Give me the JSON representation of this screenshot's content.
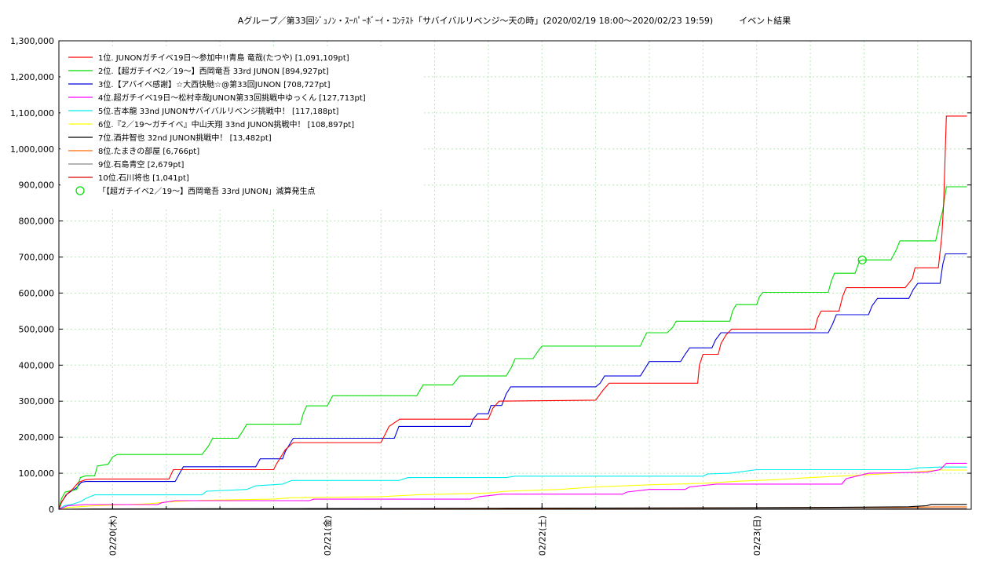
{
  "chart_data": {
    "type": "line",
    "title": "Aグループ／第33回ｼﾞｭﾉﾝ・ｽｰﾊﾟｰﾎﾞｰｲ・ｺﾝﾃｽﾄ「サバイバルリベンジ〜天の時」(2020/02/19 18:00〜2020/02/23 19:59)　　　イベント結果",
    "xlabel": "",
    "ylabel": "",
    "x_range": [
      "2020/02/19 18:00",
      "2020/02/23 19:59"
    ],
    "ylim": [
      0,
      1300000
    ],
    "grid": true,
    "legend_position": "top-left",
    "x_ticks": [
      "02/20(木)",
      "02/21(金)",
      "02/22(土)",
      "02/23(日)"
    ],
    "x_tick_hours": [
      6,
      30,
      54,
      78
    ],
    "y_ticks": [
      {
        "v": 0,
        "label": "0"
      },
      {
        "v": 100000,
        "label": "100,000"
      },
      {
        "v": 200000,
        "label": "200,000"
      },
      {
        "v": 300000,
        "label": "300,000"
      },
      {
        "v": 400000,
        "label": "400,000"
      },
      {
        "v": 500000,
        "label": "500,000"
      },
      {
        "v": 600000,
        "label": "600,000"
      },
      {
        "v": 700000,
        "label": "700,000"
      },
      {
        "v": 800000,
        "label": "800,000"
      },
      {
        "v": 900000,
        "label": "900,000"
      },
      {
        "v": 1000000,
        "label": "1,000,000"
      },
      {
        "v": 1100000,
        "label": "1,100,000"
      },
      {
        "v": 1200000,
        "label": "1,200,000"
      },
      {
        "v": 1300000,
        "label": "1,300,000"
      }
    ],
    "series": [
      {
        "name": "1位. JUNONガチイベ19日〜参加中!!青島 竜哉(たつや) [1,091,109pt]",
        "color": "#ff0000",
        "points": [
          [
            0,
            0
          ],
          [
            0.3,
            20000
          ],
          [
            0.8,
            40000
          ],
          [
            1.5,
            55000
          ],
          [
            2.2,
            75000
          ],
          [
            3,
            82000
          ],
          [
            4,
            84000
          ],
          [
            8,
            84000
          ],
          [
            12.3,
            84000
          ],
          [
            12.8,
            110000
          ],
          [
            24,
            110000
          ],
          [
            24.3,
            125000
          ],
          [
            25.3,
            165000
          ],
          [
            26.2,
            185000
          ],
          [
            36,
            185000
          ],
          [
            36.5,
            210000
          ],
          [
            36.9,
            230000
          ],
          [
            38.1,
            250000
          ],
          [
            48,
            250000
          ],
          [
            48.5,
            280000
          ],
          [
            49.2,
            300000
          ],
          [
            60,
            303000
          ],
          [
            60.8,
            330000
          ],
          [
            61.5,
            350000
          ],
          [
            71.4,
            350000
          ],
          [
            71.6,
            400000
          ],
          [
            72,
            430000
          ],
          [
            73.7,
            430000
          ],
          [
            74,
            460000
          ],
          [
            74.6,
            485000
          ],
          [
            75.2,
            500000
          ],
          [
            84.5,
            500000
          ],
          [
            84.8,
            530000
          ],
          [
            85.2,
            550000
          ],
          [
            87.2,
            550000
          ],
          [
            87.6,
            590000
          ],
          [
            88,
            615000
          ],
          [
            94.6,
            615000
          ],
          [
            95.4,
            640000
          ],
          [
            95.7,
            670000
          ],
          [
            98.3,
            670000
          ],
          [
            98.7,
            760000
          ],
          [
            98.9,
            850000
          ],
          [
            99.2,
            1091109
          ],
          [
            101.5,
            1091109
          ]
        ]
      },
      {
        "name": "2位.【超ガチイベ2／19〜】西岡竜吾 33rd JUNON [894,927pt]",
        "color": "#00dd00",
        "points": [
          [
            0,
            0
          ],
          [
            0.3,
            30000
          ],
          [
            0.7,
            48000
          ],
          [
            1.5,
            52000
          ],
          [
            2,
            55000
          ],
          [
            2.4,
            88000
          ],
          [
            3,
            93000
          ],
          [
            4,
            93000
          ],
          [
            4.3,
            120000
          ],
          [
            5.5,
            125000
          ],
          [
            6,
            145000
          ],
          [
            6.5,
            152000
          ],
          [
            16,
            152000
          ],
          [
            16.7,
            175000
          ],
          [
            17.2,
            197000
          ],
          [
            20,
            197000
          ],
          [
            20.5,
            215000
          ],
          [
            21,
            236000
          ],
          [
            27,
            236000
          ],
          [
            27.3,
            265000
          ],
          [
            27.7,
            287000
          ],
          [
            30,
            287000
          ],
          [
            30.6,
            315000
          ],
          [
            40,
            315000
          ],
          [
            40.7,
            345000
          ],
          [
            44,
            345000
          ],
          [
            44.8,
            370000
          ],
          [
            50,
            370000
          ],
          [
            50.6,
            395000
          ],
          [
            51,
            418000
          ],
          [
            53,
            418000
          ],
          [
            53.6,
            440000
          ],
          [
            54,
            453000
          ],
          [
            65,
            453000
          ],
          [
            65.3,
            470000
          ],
          [
            65.7,
            490000
          ],
          [
            68,
            490000
          ],
          [
            68.6,
            505000
          ],
          [
            69,
            522000
          ],
          [
            75,
            522000
          ],
          [
            75.3,
            550000
          ],
          [
            75.7,
            568000
          ],
          [
            78,
            568000
          ],
          [
            78.3,
            590000
          ],
          [
            78.7,
            602000
          ],
          [
            86,
            602000
          ],
          [
            86.3,
            630000
          ],
          [
            86.7,
            655000
          ],
          [
            89,
            655000
          ],
          [
            89.5,
            690000
          ],
          [
            89.9,
            692000
          ],
          [
            93,
            692000
          ],
          [
            93.6,
            720000
          ],
          [
            94,
            745000
          ],
          [
            98,
            745000
          ],
          [
            98.5,
            800000
          ],
          [
            98.8,
            830000
          ],
          [
            99.2,
            894927
          ],
          [
            101.5,
            894927
          ]
        ]
      },
      {
        "name": "3位.【アバイベ感謝】☆大西快馳☆@第33回JUNON [708,727pt]",
        "color": "#0000dd",
        "points": [
          [
            0,
            0
          ],
          [
            0.3,
            20000
          ],
          [
            0.9,
            42000
          ],
          [
            1.5,
            52000
          ],
          [
            2,
            60000
          ],
          [
            2.5,
            75000
          ],
          [
            3,
            77000
          ],
          [
            13,
            77000
          ],
          [
            13.5,
            100000
          ],
          [
            13.9,
            118000
          ],
          [
            22,
            118000
          ],
          [
            22.5,
            140000
          ],
          [
            25,
            140000
          ],
          [
            25.3,
            160000
          ],
          [
            26.2,
            197000
          ],
          [
            37.5,
            197000
          ],
          [
            38,
            230000
          ],
          [
            46,
            230000
          ],
          [
            46.3,
            250000
          ],
          [
            46.8,
            265000
          ],
          [
            48,
            265000
          ],
          [
            48.3,
            288000
          ],
          [
            49.5,
            288000
          ],
          [
            50,
            320000
          ],
          [
            50.5,
            340000
          ],
          [
            60,
            340000
          ],
          [
            60.5,
            350000
          ],
          [
            61,
            370000
          ],
          [
            65,
            370000
          ],
          [
            65.5,
            390000
          ],
          [
            66,
            410000
          ],
          [
            69.5,
            410000
          ],
          [
            70,
            430000
          ],
          [
            70.5,
            448000
          ],
          [
            73,
            448000
          ],
          [
            73.4,
            470000
          ],
          [
            74,
            490000
          ],
          [
            86,
            490000
          ],
          [
            86.5,
            515000
          ],
          [
            86.9,
            540000
          ],
          [
            90.5,
            540000
          ],
          [
            90.9,
            565000
          ],
          [
            91.5,
            585000
          ],
          [
            95,
            585000
          ],
          [
            95.5,
            610000
          ],
          [
            96,
            627000
          ],
          [
            98.5,
            627000
          ],
          [
            98.8,
            680000
          ],
          [
            99.1,
            708727
          ],
          [
            101.5,
            708727
          ]
        ]
      },
      {
        "name": "4位.超ガチイベ19日〜松村幸哉JUNON第33回挑戦中ゆっくん [127,713pt]",
        "color": "#ff00ff",
        "points": [
          [
            0,
            0
          ],
          [
            0.5,
            5000
          ],
          [
            1,
            10000
          ],
          [
            3,
            13000
          ],
          [
            11,
            13000
          ],
          [
            11.5,
            18000
          ],
          [
            13,
            24000
          ],
          [
            28,
            24000
          ],
          [
            28.5,
            28000
          ],
          [
            46,
            28000
          ],
          [
            47,
            35000
          ],
          [
            49.5,
            42000
          ],
          [
            63,
            42000
          ],
          [
            63.5,
            48000
          ],
          [
            66,
            55000
          ],
          [
            70,
            55000
          ],
          [
            70.5,
            62000
          ],
          [
            73.5,
            70000
          ],
          [
            87.5,
            70000
          ],
          [
            88,
            85000
          ],
          [
            90.5,
            100000
          ],
          [
            97,
            103000
          ],
          [
            98.5,
            110000
          ],
          [
            99.2,
            127713
          ],
          [
            101.5,
            127713
          ]
        ]
      },
      {
        "name": "5位.吉本龍 33nd JUNONサバイバルリベンジ挑戦中！ [117,188pt]",
        "color": "#00eeee",
        "points": [
          [
            0,
            0
          ],
          [
            0.6,
            10000
          ],
          [
            1.5,
            14000
          ],
          [
            2.5,
            22000
          ],
          [
            3,
            30000
          ],
          [
            3.5,
            35000
          ],
          [
            4,
            40000
          ],
          [
            16,
            40000
          ],
          [
            16.5,
            50000
          ],
          [
            21,
            55000
          ],
          [
            22,
            65000
          ],
          [
            25,
            70000
          ],
          [
            26,
            80000
          ],
          [
            38,
            80000
          ],
          [
            39,
            88000
          ],
          [
            50,
            88000
          ],
          [
            51,
            92000
          ],
          [
            72,
            92000
          ],
          [
            72.5,
            98000
          ],
          [
            75,
            100000
          ],
          [
            78,
            110000
          ],
          [
            95,
            110000
          ],
          [
            96,
            115000
          ],
          [
            98.5,
            117188
          ],
          [
            101.5,
            117188
          ]
        ]
      },
      {
        "name": "6位.『2／19〜ガチイベ』中山天翔 33nd JUNON挑戦中！ [108,897pt]",
        "color": "#ffff00",
        "points": [
          [
            0,
            0
          ],
          [
            1,
            5000
          ],
          [
            4,
            10000
          ],
          [
            10,
            15000
          ],
          [
            12,
            20000
          ],
          [
            16,
            25000
          ],
          [
            24,
            28000
          ],
          [
            26,
            32000
          ],
          [
            36,
            35000
          ],
          [
            40,
            40000
          ],
          [
            48,
            45000
          ],
          [
            50,
            50000
          ],
          [
            56,
            55000
          ],
          [
            60,
            62000
          ],
          [
            66,
            68000
          ],
          [
            72,
            72000
          ],
          [
            76,
            78000
          ],
          [
            80,
            82000
          ],
          [
            84,
            88000
          ],
          [
            88,
            93000
          ],
          [
            92,
            98000
          ],
          [
            96,
            104000
          ],
          [
            98.5,
            108897
          ],
          [
            101.5,
            108897
          ]
        ]
      },
      {
        "name": "7位.酒井智也 32nd JUNON挑戦中！ [13,482pt]",
        "color": "#000000",
        "points": [
          [
            0,
            0
          ],
          [
            4,
            1000
          ],
          [
            28,
            2000
          ],
          [
            50,
            3000
          ],
          [
            72,
            4000
          ],
          [
            85,
            5000
          ],
          [
            95,
            7000
          ],
          [
            97,
            10000
          ],
          [
            97.5,
            13482
          ],
          [
            101.5,
            13482
          ]
        ]
      },
      {
        "name": "8位.たまきの部屋 [6,766pt]",
        "color": "#ff6600",
        "points": [
          [
            0,
            0
          ],
          [
            10,
            500
          ],
          [
            30,
            1200
          ],
          [
            55,
            2500
          ],
          [
            70,
            3500
          ],
          [
            80,
            4500
          ],
          [
            95,
            5500
          ],
          [
            98,
            6766
          ],
          [
            101.5,
            6766
          ]
        ]
      },
      {
        "name": "9位.石島青空 [2,679pt]",
        "color": "#888888",
        "points": [
          [
            0,
            0
          ],
          [
            20,
            500
          ],
          [
            50,
            1200
          ],
          [
            70,
            2000
          ],
          [
            90,
            2500
          ],
          [
            95,
            2679
          ],
          [
            101.5,
            2679
          ]
        ]
      },
      {
        "name": "10位.石川将也 [1,041pt]",
        "color": "#dd0000",
        "points": [
          [
            0,
            0
          ],
          [
            30,
            300
          ],
          [
            60,
            700
          ],
          [
            90,
            1000
          ],
          [
            95,
            1041
          ],
          [
            101.5,
            1041
          ]
        ]
      }
    ],
    "annotations": [
      {
        "label": "「【超ガチイベ2／19〜】西岡竜吾 33rd JUNON」減算発生点",
        "color": "#00dd00",
        "x": 89.8,
        "y": 692000
      }
    ]
  }
}
